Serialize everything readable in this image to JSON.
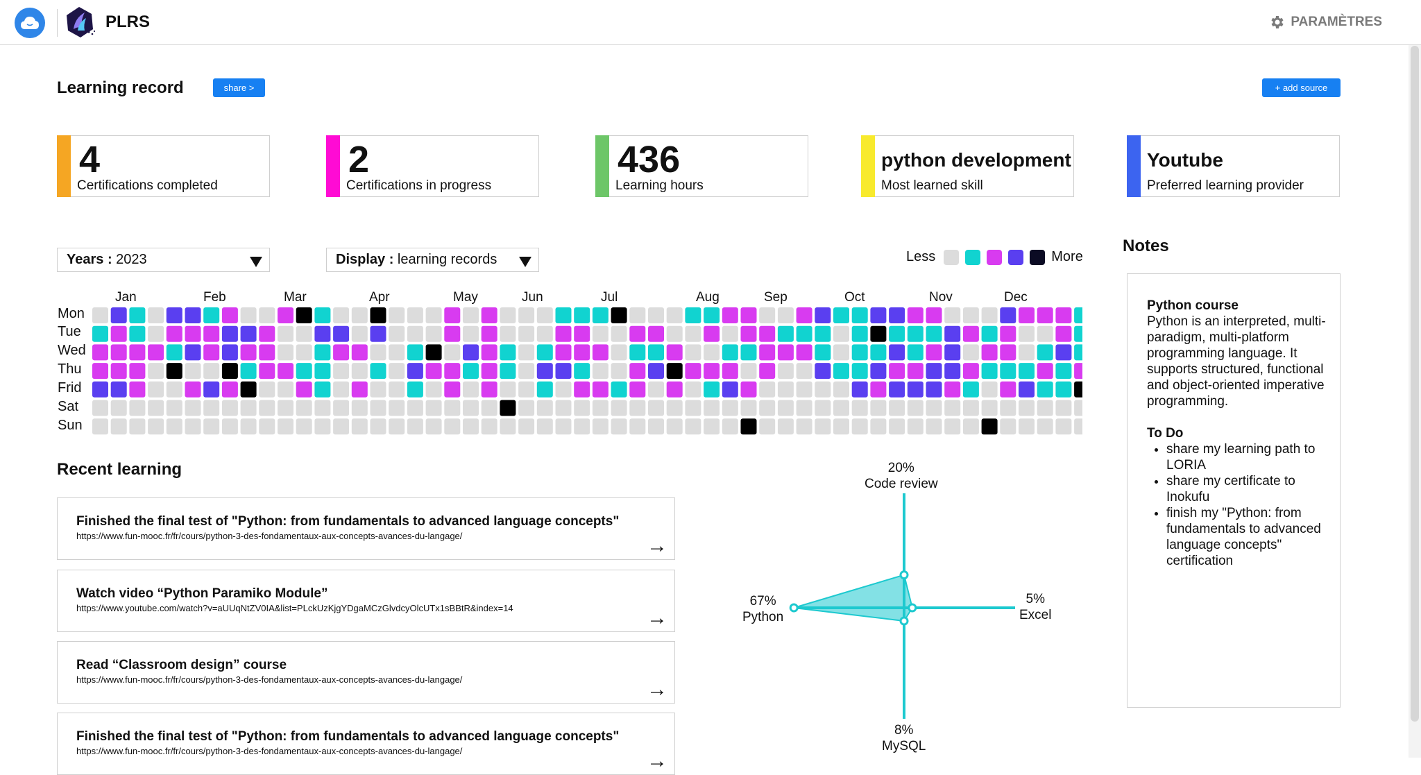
{
  "app": {
    "name": "PLRS",
    "settings_label": "PARAMÈTRES"
  },
  "header": {
    "title": "Learning record",
    "share_label": "share >",
    "add_source_label": "+ add source"
  },
  "stats": [
    {
      "value": "4",
      "label": "Certifications completed",
      "color": "#f5a623"
    },
    {
      "value": "2",
      "label": "Certifications in progress",
      "color": "#ff0bd4"
    },
    {
      "value": "436",
      "label": "Learning hours",
      "color": "#6dc668"
    },
    {
      "value": "python development",
      "label": "Most learned skill",
      "color": "#f8ea2d"
    },
    {
      "value": "Youtube",
      "label": "Preferred learning provider",
      "color": "#3c64f0"
    }
  ],
  "filters": {
    "years_label": "Years :",
    "years_value": "2023",
    "display_label": "Display :",
    "display_value": "learning records"
  },
  "legend": {
    "less": "Less",
    "more": "More",
    "colors": [
      "#dcdcdc",
      "#11d3d0",
      "#d83bf0",
      "#5a3ff0",
      "#0b0b24"
    ]
  },
  "heatmap": {
    "months": [
      "Jan",
      "Feb",
      "Mar",
      "Apr",
      "May",
      "Jun",
      "Jul",
      "Aug",
      "Sep",
      "Oct",
      "Nov",
      "Dec"
    ],
    "days": [
      "Mon",
      "Tue",
      "Wed",
      "Thu",
      "Frid",
      "Sat",
      "Sun"
    ],
    "palette": [
      "#dcdcdc",
      "#11d3d0",
      "#d83bf0",
      "#5a3ff0",
      "#000000"
    ],
    "levels": [
      "0310331200241004000202000111400011220023113322000322212",
      "1210222332003303000202000220022002022111014111321200212",
      "2222132322001220014032101222011200112221011312302201314",
      "2220400412211001032212103310023422202003113223321112123",
      "3320023240021020010202001022120201320000032333210231142",
      "0000000000000000000000400000000000000000000000000000000",
      "0000000000000000000000000000000000040000000000004000000"
    ]
  },
  "notes": {
    "title": "Notes",
    "course_title": "Python course",
    "course_text": "Python is an interpreted, multi-paradigm, multi-platform programming language. It supports structured, functional and object-oriented imperative programming.",
    "todo_title": "To Do",
    "todo": [
      "share my learning path to LORIA",
      "share my certificate to Inokufu",
      "finish my \"Python: from fundamentals to advanced language concepts\" certification"
    ]
  },
  "recent": {
    "title": "Recent learning",
    "items": [
      {
        "title": "Finished the final test of \"Python: from fundamentals to advanced language concepts\"",
        "url": "https://www.fun-mooc.fr/fr/cours/python-3-des-fondamentaux-aux-concepts-avances-du-langage/"
      },
      {
        "title": "Watch video “Python Paramiko Module”",
        "url": "https://www.youtube.com/watch?v=aUUqNtZV0IA&list=PLckUzKjgYDgaMCzGlvdcyOlcUTx1sBBtR&index=14"
      },
      {
        "title": "Read “Classroom design” course",
        "url": "https://www.fun-mooc.fr/fr/cours/python-3-des-fondamentaux-aux-concepts-avances-du-langage/"
      },
      {
        "title": "Finished the final test of \"Python: from fundamentals to advanced language concepts\"",
        "url": "https://www.fun-mooc.fr/fr/cours/python-3-des-fondamentaux-aux-concepts-avances-du-langage/"
      }
    ]
  },
  "chart_data": {
    "type": "radar",
    "axes": [
      {
        "name": "Code review",
        "value": 20,
        "label": "20%"
      },
      {
        "name": "Excel",
        "value": 5,
        "label": "5%"
      },
      {
        "name": "MySQL",
        "value": 8,
        "label": "8%"
      },
      {
        "name": "Python",
        "value": 67,
        "label": "67%"
      }
    ],
    "color": "#1dc9cf"
  }
}
